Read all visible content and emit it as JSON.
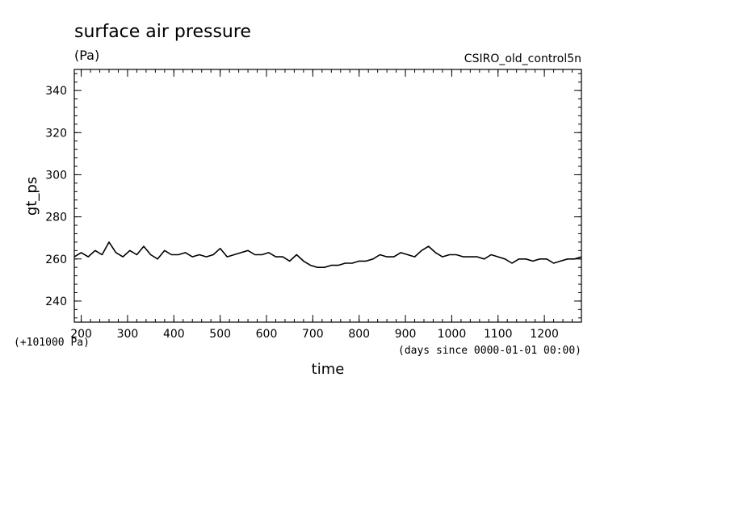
{
  "chart_data": {
    "type": "line",
    "title": "surface air pressure",
    "units": "(Pa)",
    "run_name": "CSIRO_old_control5n",
    "ylabel": "gt_ps",
    "xlabel": "time",
    "y_offset_note": "(+101000 Pa)",
    "x_units_note": "(days since 0000-01-01 00:00)",
    "xlim": [
      185,
      1280
    ],
    "ylim": [
      230,
      350
    ],
    "x_ticks": [
      200,
      300,
      400,
      500,
      600,
      700,
      800,
      900,
      1000,
      1100,
      1200
    ],
    "y_ticks": [
      240,
      260,
      280,
      300,
      320,
      340
    ],
    "grid": false,
    "series": [
      {
        "color": "#000000",
        "x": [
          185,
          200,
          215,
          230,
          245,
          260,
          275,
          290,
          305,
          320,
          335,
          350,
          365,
          380,
          395,
          410,
          425,
          440,
          455,
          470,
          485,
          500,
          515,
          530,
          545,
          560,
          575,
          590,
          605,
          620,
          635,
          650,
          665,
          680,
          695,
          710,
          725,
          740,
          755,
          770,
          785,
          800,
          815,
          830,
          845,
          860,
          875,
          890,
          905,
          920,
          935,
          950,
          965,
          980,
          995,
          1010,
          1025,
          1040,
          1055,
          1070,
          1085,
          1100,
          1115,
          1130,
          1145,
          1160,
          1175,
          1190,
          1205,
          1220,
          1235,
          1250,
          1265,
          1280
        ],
        "y": [
          261,
          263,
          261,
          264,
          262,
          268,
          263,
          261,
          264,
          262,
          266,
          262,
          260,
          264,
          262,
          262,
          263,
          261,
          262,
          261,
          262,
          265,
          261,
          262,
          263,
          264,
          262,
          262,
          263,
          261,
          261,
          259,
          262,
          259,
          257,
          256,
          256,
          257,
          257,
          258,
          258,
          259,
          259,
          260,
          262,
          261,
          261,
          263,
          262,
          261,
          264,
          266,
          263,
          261,
          262,
          262,
          261,
          261,
          261,
          260,
          262,
          261,
          260,
          258,
          260,
          260,
          259,
          260,
          260,
          258,
          259,
          260,
          260,
          261
        ]
      }
    ]
  }
}
